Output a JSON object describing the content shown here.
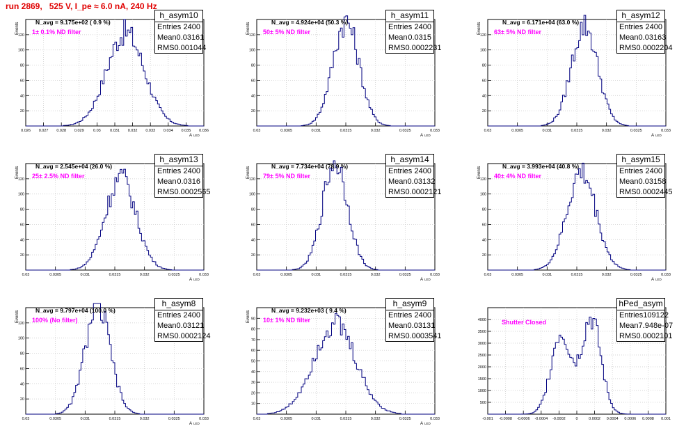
{
  "title": "run 2869,   525 V, I_pe ≈ 6.0 nA, 240 Hz",
  "colors": {
    "histogram": "#00007f",
    "title": "#e00000",
    "filter_text": "#ff00ff",
    "grid": "#c8c8c8"
  },
  "chart_data": [
    {
      "type": "histogram",
      "name": "h_asym10",
      "navg": "N_avg = 9.175e+02 ( 0.9 %)",
      "filter": "1± 0.1% ND filter",
      "entries": "2400",
      "mean": "0.03161",
      "rms": "0.001044",
      "xlabel": "A",
      "xlabel_sub": "LED",
      "ylabel": "Events",
      "xlim": [
        0.026,
        0.036
      ],
      "ylim": [
        0,
        140
      ],
      "xticks": [
        "0.026",
        "0.027",
        "0.028",
        "0.029",
        "0.03",
        "0.031",
        "0.032",
        "0.033",
        "0.034",
        "0.035",
        "0.036"
      ],
      "yticks": [
        "20",
        "40",
        "60",
        "80",
        "100",
        "120",
        "140"
      ],
      "shape": {
        "mu": 0.0316,
        "sigma": 0.00105,
        "peak": 123
      }
    },
    {
      "type": "histogram",
      "name": "h_asym11",
      "navg": "N_avg = 4.924e+04 (50.3 %)",
      "filter": "50± 5% ND filter",
      "entries": "2400",
      "mean": "0.0315",
      "rms": "0.0002231",
      "xlabel": "A",
      "xlabel_sub": "LED",
      "ylabel": "Events",
      "xlim": [
        0.03,
        0.033
      ],
      "ylim": [
        0,
        140
      ],
      "xticks": [
        "0.03",
        "0.0305",
        "0.031",
        "0.0315",
        "0.032",
        "0.0325",
        "0.033"
      ],
      "yticks": [
        "20",
        "40",
        "60",
        "80",
        "100",
        "120",
        "140"
      ],
      "shape": {
        "mu": 0.0315,
        "sigma": 0.00022,
        "peak": 138
      }
    },
    {
      "type": "histogram",
      "name": "h_asym12",
      "navg": "N_avg = 6.171e+04 (63.0 %)",
      "filter": "63± 5% ND filter",
      "entries": "2400",
      "mean": "0.03163",
      "rms": "0.0002204",
      "xlabel": "A",
      "xlabel_sub": "LED",
      "ylabel": "Events",
      "xlim": [
        0.03,
        0.033
      ],
      "ylim": [
        0,
        140
      ],
      "xticks": [
        "0.03",
        "0.0305",
        "0.031",
        "0.0315",
        "0.032",
        "0.0325",
        "0.033"
      ],
      "yticks": [
        "20",
        "40",
        "60",
        "80",
        "100",
        "120",
        "140"
      ],
      "shape": {
        "mu": 0.03163,
        "sigma": 0.00022,
        "peak": 132
      }
    },
    {
      "type": "histogram",
      "name": "h_asym13",
      "navg": "N_avg = 2.545e+04 (26.0 %)",
      "filter": "25± 2.5% ND filter",
      "entries": "2400",
      "mean": "0.0316",
      "rms": "0.0002565",
      "xlabel": "A",
      "xlabel_sub": "LED",
      "ylabel": "Events",
      "xlim": [
        0.03,
        0.033
      ],
      "ylim": [
        0,
        140
      ],
      "xticks": [
        "0.03",
        "0.0305",
        "0.031",
        "0.0315",
        "0.032",
        "0.0325",
        "0.033"
      ],
      "yticks": [
        "20",
        "40",
        "60",
        "80",
        "100",
        "120",
        "140"
      ],
      "shape": {
        "mu": 0.0316,
        "sigma": 0.000256,
        "peak": 122
      }
    },
    {
      "type": "histogram",
      "name": "h_asym14",
      "navg": "N_avg = 7.734e+04 (78.9 %)",
      "filter": "79± 5% ND filter",
      "entries": "2400",
      "mean": "0.03132",
      "rms": "0.0002121",
      "xlabel": "A",
      "xlabel_sub": "LED",
      "ylabel": "Events",
      "xlim": [
        0.03,
        0.033
      ],
      "ylim": [
        0,
        140
      ],
      "xticks": [
        "0.03",
        "0.0305",
        "0.031",
        "0.0315",
        "0.032",
        "0.0325",
        "0.033"
      ],
      "yticks": [
        "20",
        "40",
        "60",
        "80",
        "100",
        "120",
        "140"
      ],
      "shape": {
        "mu": 0.03132,
        "sigma": 0.000212,
        "peak": 142
      }
    },
    {
      "type": "histogram",
      "name": "h_asym15",
      "navg": "N_avg = 3.993e+04 (40.8 %)",
      "filter": "40± 4% ND filter",
      "entries": "2400",
      "mean": "0.03158",
      "rms": "0.0002445",
      "xlabel": "A",
      "xlabel_sub": "LED",
      "ylabel": "Events",
      "xlim": [
        0.03,
        0.033
      ],
      "ylim": [
        0,
        140
      ],
      "xticks": [
        "0.03",
        "0.0305",
        "0.031",
        "0.0315",
        "0.032",
        "0.0325",
        "0.033"
      ],
      "yticks": [
        "20",
        "40",
        "60",
        "80",
        "100",
        "120",
        "140"
      ],
      "shape": {
        "mu": 0.03158,
        "sigma": 0.000244,
        "peak": 128
      }
    },
    {
      "type": "histogram",
      "name": "h_asym8",
      "navg": "N_avg = 9.797e+04 (100.0 %)",
      "filter": "100% (No filter)",
      "entries": "2400",
      "mean": "0.03121",
      "rms": "0.0002124",
      "xlabel": "A",
      "xlabel_sub": "LED",
      "ylabel": "Events",
      "xlim": [
        0.03,
        0.033
      ],
      "ylim": [
        0,
        140
      ],
      "xticks": [
        "0.03",
        "0.0305",
        "0.031",
        "0.0315",
        "0.032",
        "0.0325",
        "0.033"
      ],
      "yticks": [
        "20",
        "40",
        "60",
        "80",
        "100",
        "120",
        "140"
      ],
      "shape": {
        "mu": 0.03121,
        "sigma": 0.000212,
        "peak": 142
      }
    },
    {
      "type": "histogram",
      "name": "h_asym9",
      "navg": "N_avg = 9.232e+03 ( 9.4 %)",
      "filter": "10± 1% ND filter",
      "entries": "2400",
      "mean": "0.03131",
      "rms": "0.0003541",
      "xlabel": "A",
      "xlabel_sub": "LED",
      "ylabel": "Events",
      "xlim": [
        0.03,
        0.033
      ],
      "ylim": [
        0,
        100
      ],
      "xticks": [
        "0.03",
        "0.0305",
        "0.031",
        "0.0315",
        "0.032",
        "0.0325",
        "0.033"
      ],
      "yticks": [
        "10",
        "20",
        "30",
        "40",
        "50",
        "60",
        "70",
        "80",
        "90"
      ],
      "shape": {
        "mu": 0.03131,
        "sigma": 0.000354,
        "peak": 85
      }
    },
    {
      "type": "histogram",
      "name": "hPed_asym",
      "navg": "",
      "filter": "Shutter Closed",
      "entries": "109122",
      "mean": "7.948e-07",
      "rms": "0.0002101",
      "xlabel": "",
      "xlabel_sub": "",
      "ylabel": "",
      "xlim": [
        -0.001,
        0.001
      ],
      "ylim": [
        0,
        4500
      ],
      "xticks": [
        "-0.001",
        "-0.0008",
        "-0.0006",
        "-0.0004",
        "-0.0002",
        "0",
        "0.0002",
        "0.0004",
        "0.0006",
        "0.0008",
        "0.001"
      ],
      "yticks": [
        "500",
        "1000",
        "1500",
        "2000",
        "2500",
        "3000",
        "3500",
        "4000"
      ],
      "shape": {
        "bimodal": true,
        "mu1": -0.00018,
        "mu2": 0.00016,
        "sigma": 0.00011,
        "peak1": 3450,
        "peak2": 4050
      }
    }
  ]
}
